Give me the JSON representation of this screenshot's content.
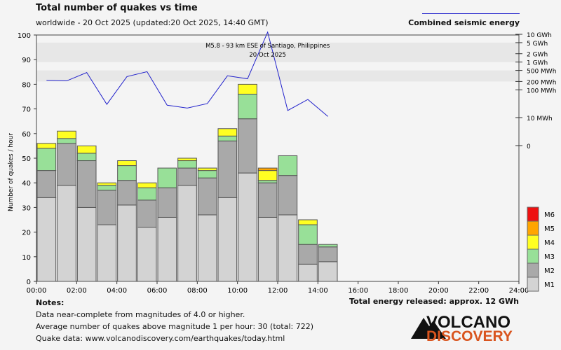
{
  "header": {
    "title": "Total number of quakes vs time",
    "subtitle": "worldwide - 20 Oct 2025 (updated:20 Oct 2025, 14:40 GMT)",
    "energy_legend": "Combined seismic energy"
  },
  "colors": {
    "M1": "#d3d3d3",
    "M2": "#a9a9a9",
    "M3": "#98e098",
    "M4": "#ffff22",
    "M5": "#ffa500",
    "M6": "#ee1111",
    "energy_line": "#2222cc",
    "bar_edge": "#555555",
    "band": "#e7e7e7",
    "grid": "#d8d8d8"
  },
  "chart_data": {
    "type": "bar",
    "stacked": true,
    "title": "Total number of quakes vs time",
    "ylabel": "Number of quakes / hour",
    "xlabel": "",
    "ylim": [
      0,
      100
    ],
    "yticks": [
      0,
      10,
      20,
      30,
      40,
      50,
      60,
      70,
      80,
      90,
      100
    ],
    "xlim": [
      0,
      24
    ],
    "xticks": [
      "00:00",
      "02:00",
      "04:00",
      "06:00",
      "08:00",
      "10:00",
      "12:00",
      "14:00",
      "16:00",
      "18:00",
      "20:00",
      "22:00",
      "24:00"
    ],
    "categories": [
      "00",
      "01",
      "02",
      "03",
      "04",
      "05",
      "06",
      "07",
      "08",
      "09",
      "10",
      "11",
      "12",
      "13",
      "14"
    ],
    "series": [
      {
        "name": "M1",
        "values": [
          34,
          39,
          30,
          23,
          31,
          22,
          26,
          39,
          27,
          34,
          44,
          26,
          27,
          7,
          8
        ]
      },
      {
        "name": "M2",
        "values": [
          11,
          17,
          19,
          14,
          10,
          11,
          12,
          7,
          15,
          23,
          22,
          14,
          16,
          8,
          6
        ]
      },
      {
        "name": "M3",
        "values": [
          9,
          2,
          3,
          2,
          6,
          5,
          8,
          3,
          3,
          2,
          10,
          1,
          8,
          8,
          1
        ]
      },
      {
        "name": "M4",
        "values": [
          2,
          3,
          3,
          1,
          2,
          2,
          0,
          1,
          1,
          3,
          4,
          4,
          0,
          2,
          0
        ]
      },
      {
        "name": "M5",
        "values": [
          0,
          0,
          0,
          0,
          0,
          0,
          0,
          0,
          0,
          0,
          0,
          1,
          0,
          0,
          0
        ]
      },
      {
        "name": "M6",
        "values": [
          0,
          0,
          0,
          0,
          0,
          0,
          0,
          0,
          0,
          0,
          0,
          0,
          0,
          0,
          0
        ]
      }
    ],
    "legend": [
      "M6",
      "M5",
      "M4",
      "M3",
      "M2",
      "M1"
    ],
    "energy_axis": {
      "label": "Combined seismic energy",
      "ticks": [
        {
          "label": "0",
          "value": 0
        },
        {
          "label": "10 MWh",
          "value": 10
        },
        {
          "label": "100 MWh",
          "value": 100
        },
        {
          "label": "200 MWh",
          "value": 200
        },
        {
          "label": "500 MWh",
          "value": 500
        },
        {
          "label": "1 GWh",
          "value": 1000
        },
        {
          "label": "2 GWh",
          "value": 2000
        },
        {
          "label": "5 GWh",
          "value": 5000
        },
        {
          "label": "10 GWh",
          "value": 10000
        }
      ],
      "energy_mwh": [
        220,
        210,
        420,
        30,
        300,
        450,
        28,
        22,
        32,
        320,
        250,
        12000,
        18,
        45,
        11
      ],
      "bands": [
        [
          200,
          500
        ],
        [
          1000,
          5000
        ]
      ]
    },
    "annotation": {
      "text": [
        "M5.8 - 93 km ESE of Santiago, Philippines",
        "20 Oct 2025"
      ],
      "hour": 11
    }
  },
  "notes": {
    "heading": "Notes:",
    "line1": "Data near-complete from magnitudes of 4.0 or higher.",
    "line2": "Average number of quakes above magnitude 1 per hour: 30 (total: 722)",
    "line3": "Quake data: www.volcanodiscovery.com/earthquakes/today.html"
  },
  "total_energy": "Total energy released: approx. 12 GWh",
  "logo": {
    "line1": "VOLCANO",
    "line2": "DISCOVERY"
  }
}
